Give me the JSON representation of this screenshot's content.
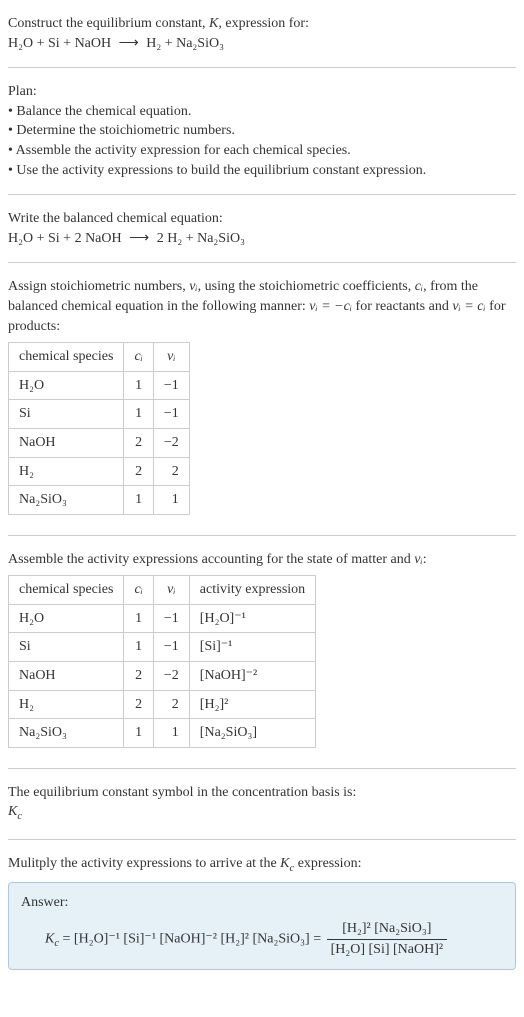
{
  "header": {
    "title_prefix": "Construct the equilibrium constant, ",
    "title_k": "K",
    "title_suffix": ", expression for:",
    "equation_lhs": "H₂O + Si + NaOH",
    "arrow": "⟶",
    "equation_rhs": "H₂ + Na₂SiO₃"
  },
  "plan": {
    "title": "Plan:",
    "steps": [
      "• Balance the chemical equation.",
      "• Determine the stoichiometric numbers.",
      "• Assemble the activity expression for each chemical species.",
      "• Use the activity expressions to build the equilibrium constant expression."
    ]
  },
  "balanced": {
    "title": "Write the balanced chemical equation:",
    "equation_lhs": "H₂O + Si + 2 NaOH",
    "arrow": "⟶",
    "equation_rhs": "2 H₂ + Na₂SiO₃"
  },
  "stoich": {
    "intro_prefix": "Assign stoichiometric numbers, ",
    "intro_nu": "νᵢ",
    "intro_mid1": ", using the stoichiometric coefficients, ",
    "intro_ci": "cᵢ",
    "intro_mid2": ", from the balanced chemical equation in the following manner: ",
    "intro_eq1": "νᵢ = −cᵢ",
    "intro_mid3": " for reactants and ",
    "intro_eq2": "νᵢ = cᵢ",
    "intro_suffix": " for products:",
    "headers": [
      "chemical species",
      "cᵢ",
      "νᵢ"
    ],
    "rows": [
      [
        "H₂O",
        "1",
        "−1"
      ],
      [
        "Si",
        "1",
        "−1"
      ],
      [
        "NaOH",
        "2",
        "−2"
      ],
      [
        "H₂",
        "2",
        "2"
      ],
      [
        "Na₂SiO₃",
        "1",
        "1"
      ]
    ]
  },
  "activity": {
    "intro_prefix": "Assemble the activity expressions accounting for the state of matter and ",
    "intro_nu": "νᵢ",
    "intro_suffix": ":",
    "headers": [
      "chemical species",
      "cᵢ",
      "νᵢ",
      "activity expression"
    ],
    "rows": [
      [
        "H₂O",
        "1",
        "−1",
        "[H₂O]⁻¹"
      ],
      [
        "Si",
        "1",
        "−1",
        "[Si]⁻¹"
      ],
      [
        "NaOH",
        "2",
        "−2",
        "[NaOH]⁻²"
      ],
      [
        "H₂",
        "2",
        "2",
        "[H₂]²"
      ],
      [
        "Na₂SiO₃",
        "1",
        "1",
        "[Na₂SiO₃]"
      ]
    ]
  },
  "kc_symbol": {
    "intro": "The equilibrium constant symbol in the concentration basis is:",
    "symbol": "K",
    "sub": "c"
  },
  "multiply": {
    "intro_prefix": "Mulitply the activity expressions to arrive at the ",
    "kc_k": "K",
    "kc_sub": "c",
    "intro_suffix": " expression:"
  },
  "answer": {
    "label": "Answer:",
    "lhs_k": "K",
    "lhs_sub": "c",
    "eq": " = ",
    "expr": "[H₂O]⁻¹ [Si]⁻¹ [NaOH]⁻² [H₂]² [Na₂SiO₃]",
    "eq2": " = ",
    "num": "[H₂]² [Na₂SiO₃]",
    "den": "[H₂O] [Si] [NaOH]²"
  },
  "colors": {
    "text": "#333333",
    "border": "#cccccc",
    "answer_bg": "#e6f0f7",
    "answer_border": "#b0c8dc",
    "bg": "#ffffff"
  }
}
